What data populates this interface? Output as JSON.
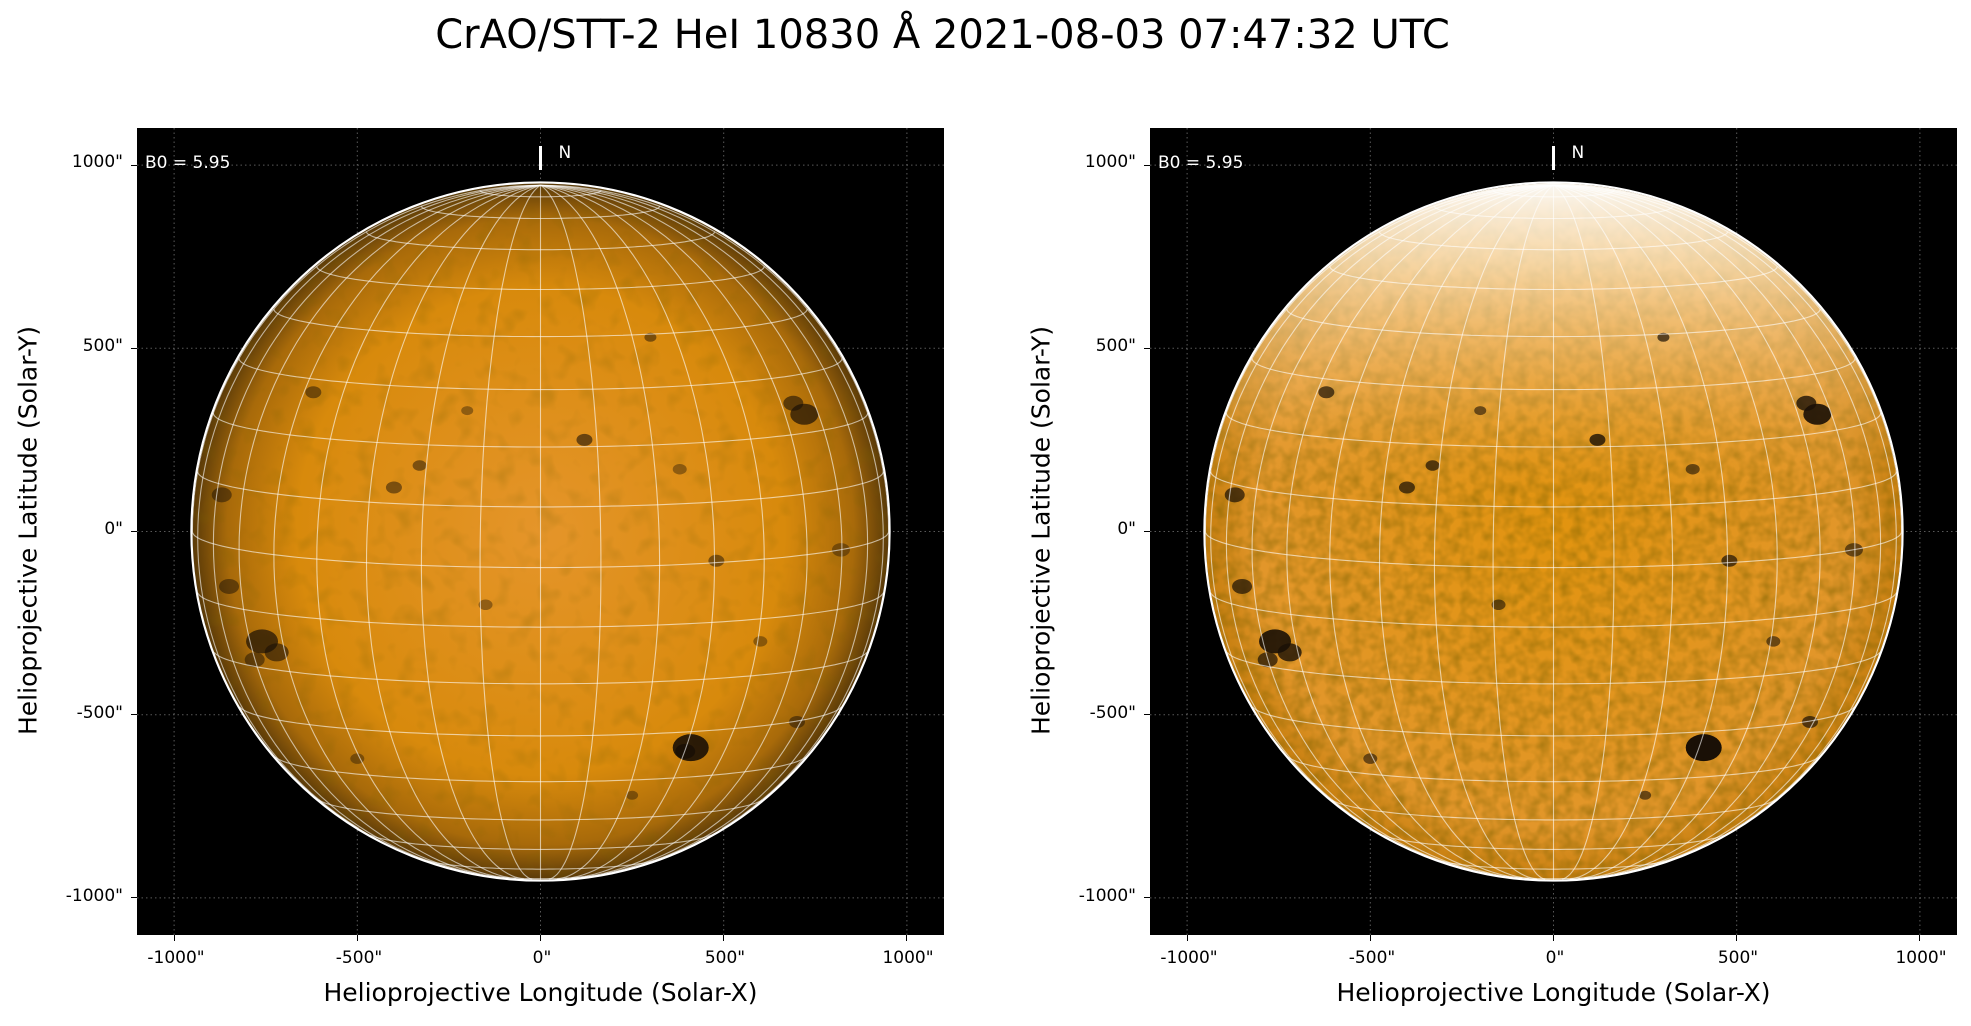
{
  "figure": {
    "title": "CrAO/STT-2 HeI 10830 Å 2021-08-03 07:47:32 UTC",
    "panels": [
      {
        "annotation": "B0 = 5.95",
        "north_label": "N",
        "xlabel": "Helioprojective Longitude (Solar-X)",
        "ylabel": "Helioprojective Latitude (Solar-Y)",
        "xticks": [
          "-1000\"",
          "-500\"",
          "0\"",
          "500\"",
          "1000\""
        ],
        "yticks": [
          "1000\"",
          "500\"",
          "0\"",
          "-500\"",
          "-1000\""
        ],
        "disk_color": "#e0900e",
        "view": "limb-darkened"
      },
      {
        "annotation": "B0 = 5.95",
        "north_label": "N",
        "xlabel": "Helioprojective Longitude (Solar-X)",
        "ylabel": "Helioprojective Latitude (Solar-Y)",
        "xticks": [
          "-1000\"",
          "-500\"",
          "0\"",
          "500\"",
          "1000\""
        ],
        "yticks": [
          "1000\"",
          "500\"",
          "0\"",
          "-500\"",
          "-1000\""
        ],
        "disk_color": "#e0900e",
        "view": "flattened"
      }
    ]
  }
}
